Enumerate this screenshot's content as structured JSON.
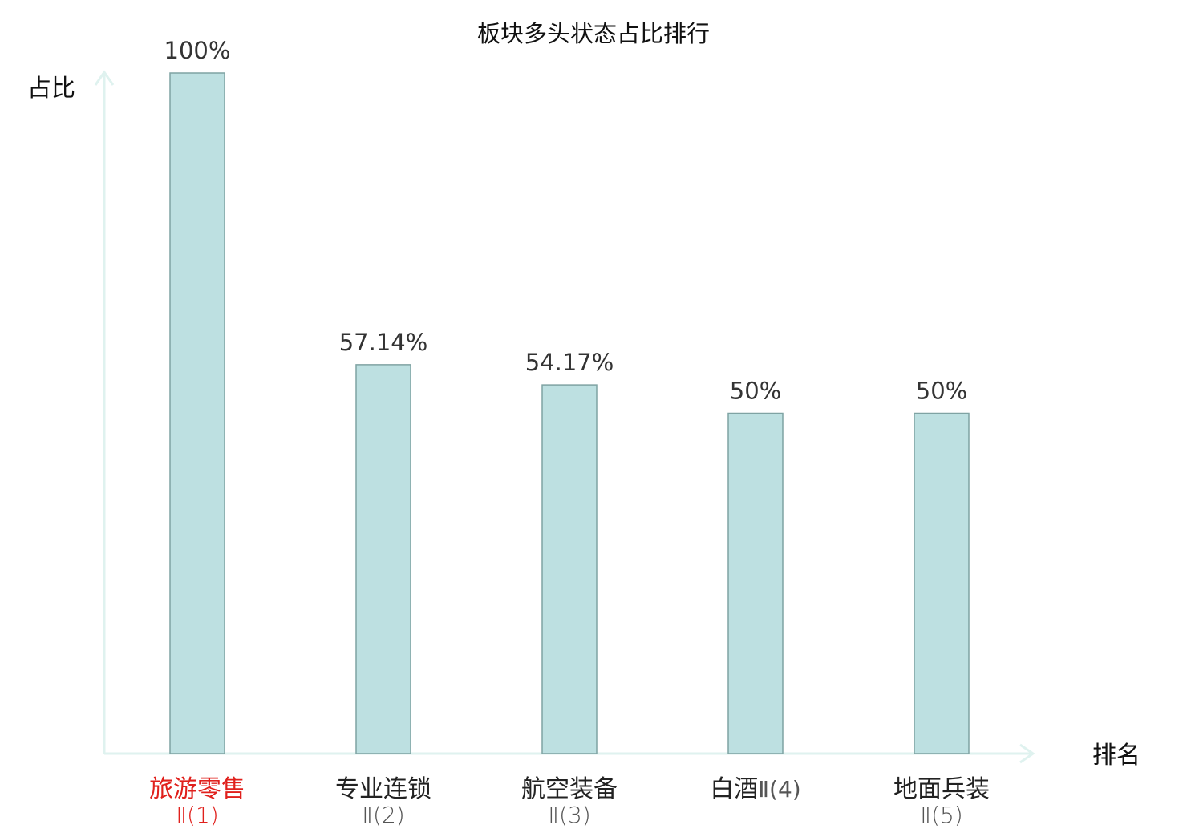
{
  "chart_data": {
    "type": "bar",
    "title": "板块多头状态占比排行",
    "ylabel": "占比",
    "xlabel": "排名",
    "ylim": [
      0,
      100
    ],
    "grid": false,
    "legend": "none",
    "categories": [
      {
        "name": "旅游零售",
        "suffix": "Ⅱ(1)",
        "inline": false,
        "highlight": true
      },
      {
        "name": "专业连锁",
        "suffix": "Ⅱ(2)",
        "inline": false,
        "highlight": false
      },
      {
        "name": "航空装备",
        "suffix": "Ⅱ(3)",
        "inline": false,
        "highlight": false
      },
      {
        "name": "白酒",
        "suffix": "Ⅱ(4)",
        "inline": true,
        "highlight": false
      },
      {
        "name": "地面兵装",
        "suffix": "Ⅱ(5)",
        "inline": false,
        "highlight": false
      }
    ],
    "values": [
      100,
      57.14,
      54.17,
      50,
      50
    ],
    "value_labels": [
      "100%",
      "57.14%",
      "54.17%",
      "50%",
      "50%"
    ],
    "colors": {
      "bar_fill": "#bde0e1",
      "bar_stroke": "#7fa3a3",
      "axis": "#dff2ef",
      "highlight_text": "#e0201c"
    }
  }
}
